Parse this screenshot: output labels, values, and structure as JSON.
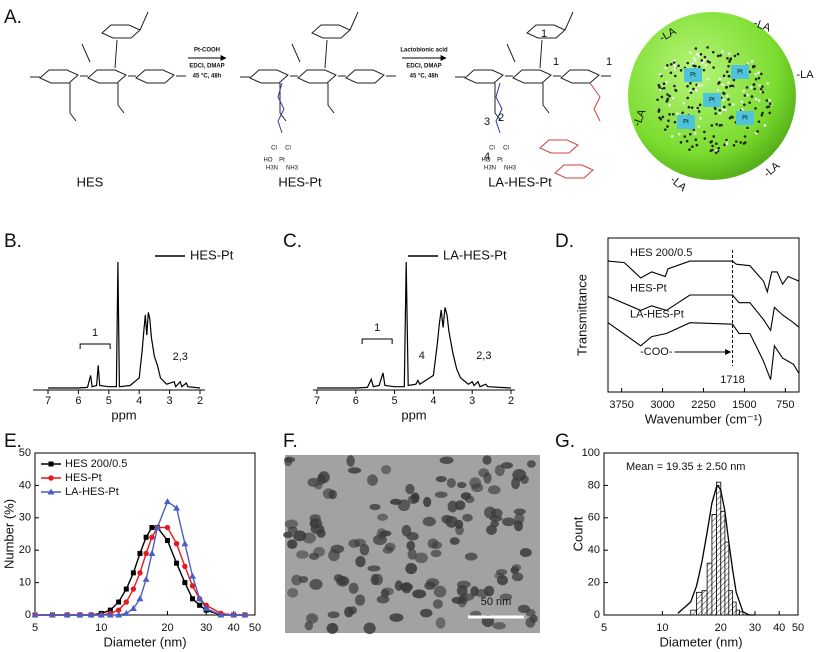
{
  "panels": [
    "A.",
    "B.",
    "C.",
    "D.",
    "E.",
    "F.",
    "G."
  ],
  "scheme": {
    "labels": [
      "HES",
      "HES-Pt",
      "LA-HES-Pt"
    ],
    "step1": [
      "Pt-COOH",
      "EDCI, DMAP",
      "45 °C, 48h"
    ],
    "step2": [
      "Lactobionic acid",
      "EDCI, DMAP",
      "45 °C, 48h"
    ],
    "numbers": [
      "1",
      "1",
      "1",
      "2",
      "3",
      "4"
    ],
    "pt_group": [
      "Cl",
      "Cl",
      "HO",
      "Pt",
      "NH3",
      "H3N"
    ],
    "sphere_la": [
      "-LA",
      "-LA",
      "-LA",
      "-LA",
      "-LA",
      "-LA"
    ],
    "sphere_pt": [
      "Pt",
      "Pt",
      "Pt",
      "Pt",
      "Pt"
    ]
  },
  "tem": {
    "scale_bar": "50 nm"
  },
  "chart_data": [
    {
      "type": "spectrum",
      "xlabel": "ppm",
      "xlim": [
        7,
        2
      ],
      "xticks": [
        7,
        6,
        5,
        4,
        3,
        2
      ],
      "annotations": [
        "1",
        "2,3"
      ],
      "series": [
        {
          "name": "HES-Pt",
          "color": "#000000",
          "x": [
            7.0,
            6.0,
            5.7,
            5.6,
            5.55,
            5.4,
            5.35,
            5.3,
            5.0,
            4.75,
            4.7,
            4.65,
            4.3,
            4.0,
            3.9,
            3.85,
            3.8,
            3.75,
            3.7,
            3.65,
            3.6,
            3.5,
            3.4,
            3.3,
            3.1,
            2.85,
            2.8,
            2.65,
            2.6,
            2.45,
            2.4,
            2.0
          ],
          "values": [
            0,
            0,
            0.5,
            10,
            1,
            2,
            18,
            2,
            1,
            1,
            100,
            1,
            2,
            8,
            30,
            45,
            58,
            42,
            60,
            55,
            40,
            25,
            18,
            8,
            3,
            5,
            1,
            5,
            1,
            4,
            1,
            0
          ]
        }
      ]
    },
    {
      "type": "spectrum",
      "xlabel": "ppm",
      "xlim": [
        7,
        2
      ],
      "xticks": [
        7,
        6,
        5,
        4,
        3,
        2
      ],
      "annotations": [
        "1",
        "4",
        "2,3"
      ],
      "series": [
        {
          "name": "LA-HES-Pt",
          "color": "#000000",
          "x": [
            7.0,
            6.0,
            5.7,
            5.6,
            5.55,
            5.4,
            5.3,
            5.25,
            5.0,
            4.75,
            4.7,
            4.65,
            4.45,
            4.4,
            4.35,
            4.0,
            3.9,
            3.85,
            3.8,
            3.75,
            3.7,
            3.65,
            3.6,
            3.5,
            3.4,
            3.3,
            3.1,
            3.0,
            2.95,
            2.85,
            2.8,
            2.65,
            2.6,
            2.0
          ],
          "values": [
            0,
            0,
            0.5,
            7,
            1,
            2,
            12,
            2,
            1,
            1,
            100,
            2,
            3,
            6,
            3,
            10,
            35,
            50,
            62,
            48,
            64,
            58,
            45,
            28,
            15,
            8,
            3,
            5,
            2,
            5,
            1,
            3,
            1,
            0
          ]
        }
      ]
    },
    {
      "type": "ftir",
      "xlabel": "Wavenumber (cm⁻¹)",
      "ylabel": "Transmittance",
      "xlim": [
        4000,
        500
      ],
      "xticks": [
        3750,
        3000,
        2250,
        1500,
        750
      ],
      "reference_line": 1718,
      "annotation": "-COO-",
      "series": [
        {
          "name": "HES 200/0.5",
          "color": "#000000",
          "x": [
            4000,
            3700,
            3400,
            3200,
            2950,
            2900,
            2500,
            1718,
            1650,
            1400,
            1150,
            1080,
            1000,
            900,
            800,
            700,
            500
          ],
          "values": [
            85,
            84,
            74,
            78,
            75,
            80,
            85,
            85,
            83,
            82,
            72,
            65,
            78,
            78,
            70,
            75,
            72
          ]
        },
        {
          "name": "HES-Pt",
          "color": "#000000",
          "x": [
            4000,
            3400,
            3200,
            2930,
            2500,
            1718,
            1600,
            1400,
            1150,
            1020,
            950,
            800,
            600,
            500
          ],
          "values": [
            62,
            53,
            56,
            53,
            63,
            63,
            58,
            58,
            47,
            40,
            55,
            50,
            45,
            42
          ]
        },
        {
          "name": "LA-HES-Pt",
          "color": "#000000",
          "x": [
            4000,
            3400,
            3200,
            2930,
            2500,
            1718,
            1600,
            1400,
            1150,
            1020,
            950,
            800,
            600,
            500
          ],
          "values": [
            45,
            30,
            36,
            38,
            45,
            44,
            38,
            38,
            20,
            8,
            30,
            22,
            18,
            12
          ]
        }
      ]
    },
    {
      "type": "line",
      "xlabel": "Diameter (nm)",
      "ylabel": "Number (%)",
      "xlim": [
        5,
        50
      ],
      "log_x": true,
      "xticks": [
        5,
        10,
        20,
        30,
        40,
        50
      ],
      "ylim": [
        0,
        50
      ],
      "yticks": [
        0,
        10,
        20,
        30,
        40,
        50
      ],
      "legend": "top-left",
      "x": [
        5,
        6,
        7,
        8,
        9,
        10,
        11,
        12,
        13,
        14,
        15,
        16,
        17,
        18,
        20,
        22,
        24,
        26,
        28,
        30,
        35,
        40,
        45
      ],
      "series": [
        {
          "name": "HES 200/0.5",
          "color": "#000000",
          "marker": "square",
          "values": [
            0,
            0,
            0,
            0,
            0,
            0.5,
            1.5,
            4,
            8,
            13,
            19,
            24,
            27,
            27,
            23,
            16,
            10,
            5,
            3,
            1.5,
            0,
            0,
            0
          ]
        },
        {
          "name": "HES-Pt",
          "color": "#e41a1c",
          "marker": "circle",
          "values": [
            0,
            0,
            0,
            0,
            0,
            0,
            0.5,
            1.5,
            4,
            8,
            13,
            19,
            24,
            27,
            27,
            22,
            15,
            9,
            5,
            3,
            0.5,
            0,
            0
          ]
        },
        {
          "name": "LA-HES-Pt",
          "color": "#4a5fc1",
          "marker": "triangle",
          "values": [
            0,
            0,
            0,
            0,
            0,
            0,
            0,
            0,
            0.5,
            2,
            5,
            11,
            19,
            27,
            35,
            33,
            22,
            12,
            5,
            2,
            0,
            0,
            0
          ]
        }
      ]
    },
    {
      "type": "histogram",
      "xlabel": "Diameter (nm)",
      "ylabel": "Count",
      "xlim": [
        5,
        50
      ],
      "log_x": true,
      "xticks": [
        5,
        10,
        20,
        30,
        40,
        50
      ],
      "ylim": [
        0,
        100
      ],
      "yticks": [
        0,
        20,
        40,
        60,
        80,
        100
      ],
      "bins": [
        14,
        15,
        16,
        17,
        18,
        19,
        20,
        21,
        22,
        23,
        24,
        25,
        26
      ],
      "counts": [
        3,
        14,
        15,
        32,
        62,
        82,
        64,
        45,
        15,
        8,
        3,
        2
      ],
      "fit": {
        "x": [
          12,
          14,
          15,
          16,
          17,
          18,
          19,
          19.35,
          20,
          21,
          22,
          23,
          24,
          26,
          28,
          30
        ],
        "values": [
          1,
          8,
          18,
          33,
          51,
          69,
          79,
          80,
          77,
          64,
          45,
          28,
          14,
          2,
          0,
          0
        ]
      },
      "annotation": "Mean = 19.35 ± 2.50 nm"
    }
  ]
}
